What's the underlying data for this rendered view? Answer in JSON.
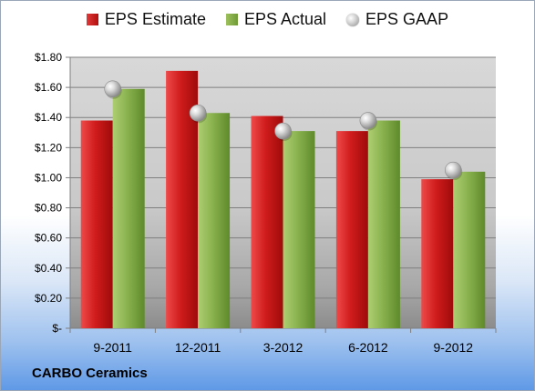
{
  "company": "CARBO Ceramics",
  "chart_data": {
    "type": "bar",
    "categories": [
      "9-2011",
      "12-2011",
      "3-2012",
      "6-2012",
      "9-2012"
    ],
    "series": [
      {
        "name": "EPS Estimate",
        "values": [
          1.38,
          1.71,
          1.41,
          1.31,
          0.99
        ],
        "color": "#c8191b"
      },
      {
        "name": "EPS Actual",
        "values": [
          1.59,
          1.43,
          1.31,
          1.38,
          1.04
        ],
        "color": "#86b04a"
      },
      {
        "name": "EPS GAAP",
        "values": [
          1.59,
          1.43,
          1.31,
          1.38,
          1.05
        ],
        "color": "#b5b5b5",
        "marker": "sphere"
      }
    ],
    "ylim": [
      0,
      1.8
    ],
    "yticks": [
      {
        "value": 0,
        "label": "$-"
      },
      {
        "value": 0.2,
        "label": "$0.20"
      },
      {
        "value": 0.4,
        "label": "$0.40"
      },
      {
        "value": 0.6,
        "label": "$0.60"
      },
      {
        "value": 0.8,
        "label": "$0.80"
      },
      {
        "value": 1.0,
        "label": "$1.00"
      },
      {
        "value": 1.2,
        "label": "$1.20"
      },
      {
        "value": 1.4,
        "label": "$1.40"
      },
      {
        "value": 1.6,
        "label": "$1.60"
      },
      {
        "value": 1.8,
        "label": "$1.80"
      }
    ],
    "grid": true,
    "legend": "top-center"
  }
}
